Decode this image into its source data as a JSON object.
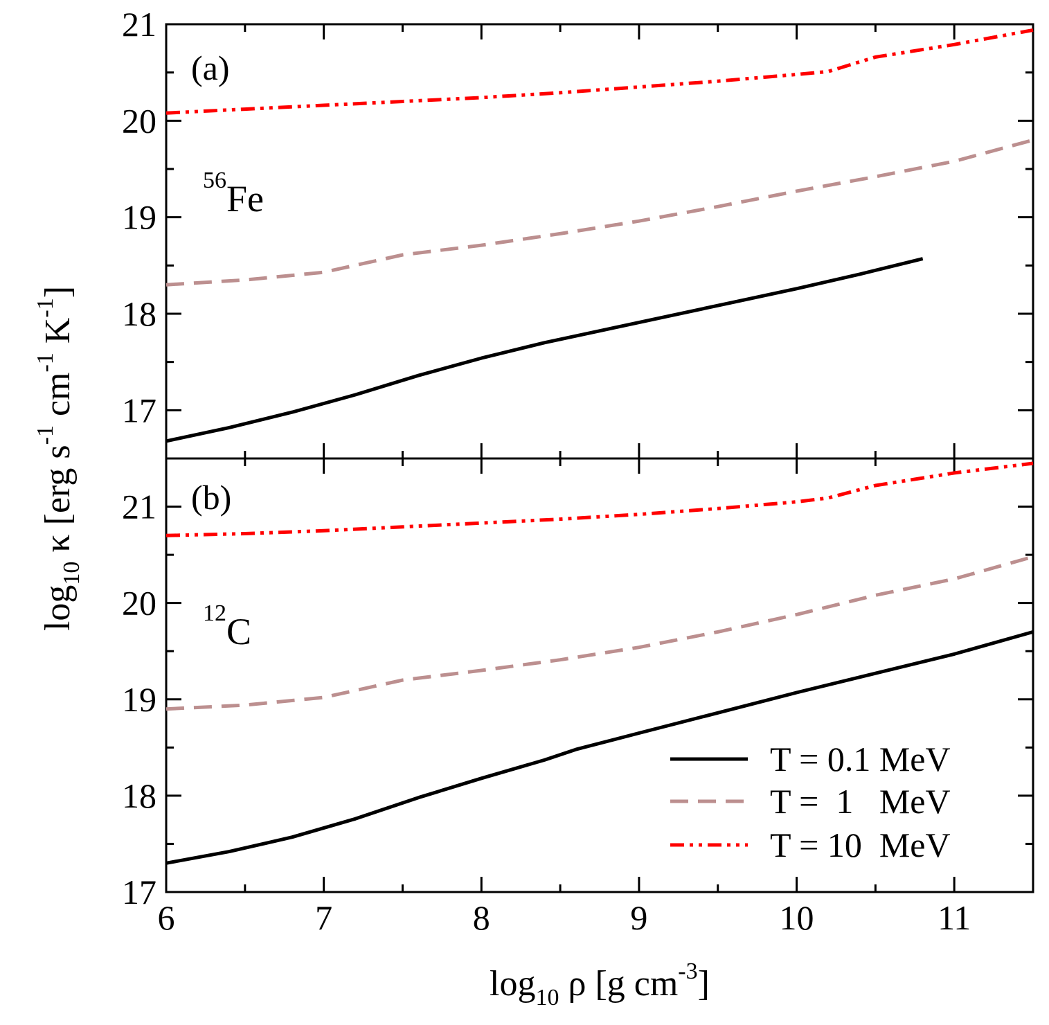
{
  "chart_data": [
    {
      "type": "line",
      "panel_label": "(a)",
      "nuclide": {
        "mass_number": "56",
        "element": "Fe"
      },
      "xlim": [
        6,
        11.5
      ],
      "ylim": [
        16.5,
        21
      ],
      "y_ticks": [
        17,
        18,
        19,
        20,
        21
      ],
      "series": [
        {
          "name": "T = 0.1 MeV",
          "color": "#000000",
          "style": "solid",
          "x": [
            6,
            6.4,
            6.8,
            7.2,
            7.6,
            8.0,
            8.4,
            8.8,
            9.2,
            9.6,
            10.0,
            10.4,
            10.8
          ],
          "y": [
            16.68,
            16.82,
            16.98,
            17.16,
            17.36,
            17.54,
            17.7,
            17.84,
            17.98,
            18.12,
            18.26,
            18.41,
            18.57
          ]
        },
        {
          "name": "T = 1 MeV",
          "color": "#bc8f8f",
          "style": "dashed",
          "x": [
            6,
            6.5,
            7.0,
            7.5,
            8.0,
            8.5,
            9.0,
            9.5,
            10.0,
            10.5,
            11.0,
            11.5
          ],
          "y": [
            18.3,
            18.35,
            18.43,
            18.61,
            18.71,
            18.83,
            18.96,
            19.11,
            19.27,
            19.42,
            19.58,
            19.8
          ]
        },
        {
          "name": "T = 10 MeV",
          "color": "#ff0000",
          "style": "dashdotdot",
          "x": [
            6,
            6.5,
            7.0,
            7.5,
            8.0,
            8.5,
            9.0,
            9.5,
            10.0,
            10.2,
            10.5,
            11.0,
            11.5
          ],
          "y": [
            20.08,
            20.12,
            20.16,
            20.2,
            20.24,
            20.29,
            20.35,
            20.41,
            20.48,
            20.51,
            20.66,
            20.79,
            20.94
          ]
        }
      ]
    },
    {
      "type": "line",
      "panel_label": "(b)",
      "nuclide": {
        "mass_number": "12",
        "element": "C"
      },
      "xlim": [
        6,
        11.5
      ],
      "ylim": [
        17,
        21.5
      ],
      "x_ticks": [
        6,
        7,
        8,
        9,
        10,
        11
      ],
      "y_ticks": [
        17,
        18,
        19,
        20,
        21
      ],
      "series": [
        {
          "name": "T = 0.1 MeV",
          "color": "#000000",
          "style": "solid",
          "x": [
            6,
            6.4,
            6.8,
            7.2,
            7.6,
            8.0,
            8.4,
            8.6,
            9.0,
            9.5,
            10.0,
            10.5,
            11.0,
            11.5
          ],
          "y": [
            17.3,
            17.42,
            17.57,
            17.76,
            17.98,
            18.18,
            18.37,
            18.48,
            18.65,
            18.86,
            19.07,
            19.27,
            19.47,
            19.7
          ]
        },
        {
          "name": "T = 1 MeV",
          "color": "#bc8f8f",
          "style": "dashed",
          "x": [
            6,
            6.5,
            7.0,
            7.5,
            8.0,
            8.5,
            9.0,
            9.5,
            10.0,
            10.5,
            11.0,
            11.5
          ],
          "y": [
            18.9,
            18.94,
            19.02,
            19.2,
            19.3,
            19.41,
            19.54,
            19.7,
            19.88,
            20.08,
            20.25,
            20.48
          ]
        },
        {
          "name": "T = 10 MeV",
          "color": "#ff0000",
          "style": "dashdotdot",
          "x": [
            6,
            6.5,
            7.0,
            7.5,
            8.0,
            8.5,
            9.0,
            9.5,
            10.0,
            10.2,
            10.5,
            11.0,
            11.5
          ],
          "y": [
            20.7,
            20.72,
            20.75,
            20.79,
            20.83,
            20.87,
            20.92,
            20.98,
            21.05,
            21.09,
            21.22,
            21.35,
            21.45
          ]
        }
      ]
    }
  ],
  "axes": {
    "xlabel": {
      "prefix": "log",
      "sub": "10",
      "main": " ρ [g cm",
      "sup": "-3",
      "suffix": "]"
    },
    "ylabel": {
      "prefix": "log",
      "sub": "10",
      "p1": " κ [erg  s",
      "sup1": "-1",
      "p2": " cm",
      "sup2": "-1",
      "p3": " K",
      "sup3": "-1",
      "suffix": "]"
    }
  },
  "legend": {
    "placement": "bottom-right",
    "entries": [
      {
        "label": "T = 0.1 MeV",
        "color": "#000000",
        "style": "solid"
      },
      {
        "label": "T =  1   MeV",
        "color": "#bc8f8f",
        "style": "dashed"
      },
      {
        "label": "T = 10  MeV",
        "color": "#ff0000",
        "style": "dashdotdot"
      }
    ]
  }
}
